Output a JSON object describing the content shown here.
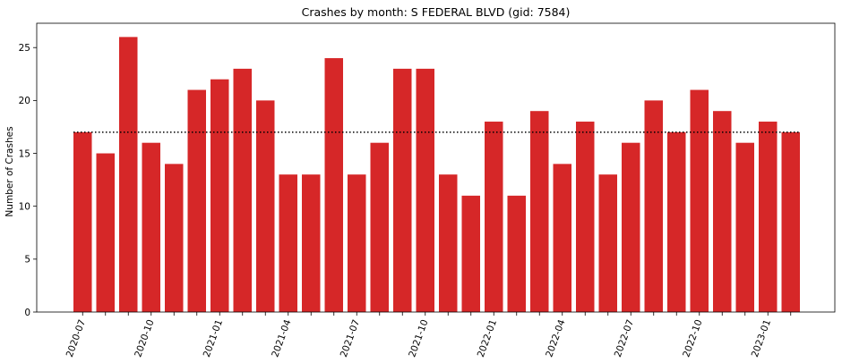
{
  "chart_data": {
    "type": "bar",
    "title": "Crashes by month: S FEDERAL BLVD (gid: 7584)",
    "xlabel": "",
    "ylabel": "Number of Crashes",
    "months": [
      "2020-07",
      "2020-08",
      "2020-09",
      "2020-10",
      "2020-11",
      "2020-12",
      "2021-01",
      "2021-02",
      "2021-03",
      "2021-04",
      "2021-05",
      "2021-06",
      "2021-07",
      "2021-08",
      "2021-09",
      "2021-10",
      "2021-11",
      "2021-12",
      "2022-01",
      "2022-02",
      "2022-03",
      "2022-04",
      "2022-05",
      "2022-06",
      "2022-07",
      "2022-08",
      "2022-09",
      "2022-10",
      "2022-11",
      "2022-12",
      "2023-01",
      "2023-02"
    ],
    "values": [
      17,
      15,
      26,
      16,
      14,
      21,
      22,
      23,
      20,
      13,
      13,
      24,
      13,
      16,
      23,
      23,
      13,
      11,
      18,
      11,
      19,
      14,
      18,
      13,
      16,
      20,
      17,
      21,
      19,
      16,
      18,
      17
    ],
    "xtick_labels": [
      "2020-07",
      "2020-10",
      "2021-01",
      "2021-04",
      "2021-07",
      "2021-10",
      "2022-01",
      "2022-04",
      "2022-07",
      "2022-10",
      "2023-01"
    ],
    "yticks": [
      0,
      5,
      10,
      15,
      20,
      25
    ],
    "ylim": [
      0,
      27.3
    ],
    "reference_line": {
      "y": 17,
      "style": "dotted",
      "color": "#000000"
    },
    "bar_color": "#d62728",
    "grid": false,
    "legend": "none"
  }
}
